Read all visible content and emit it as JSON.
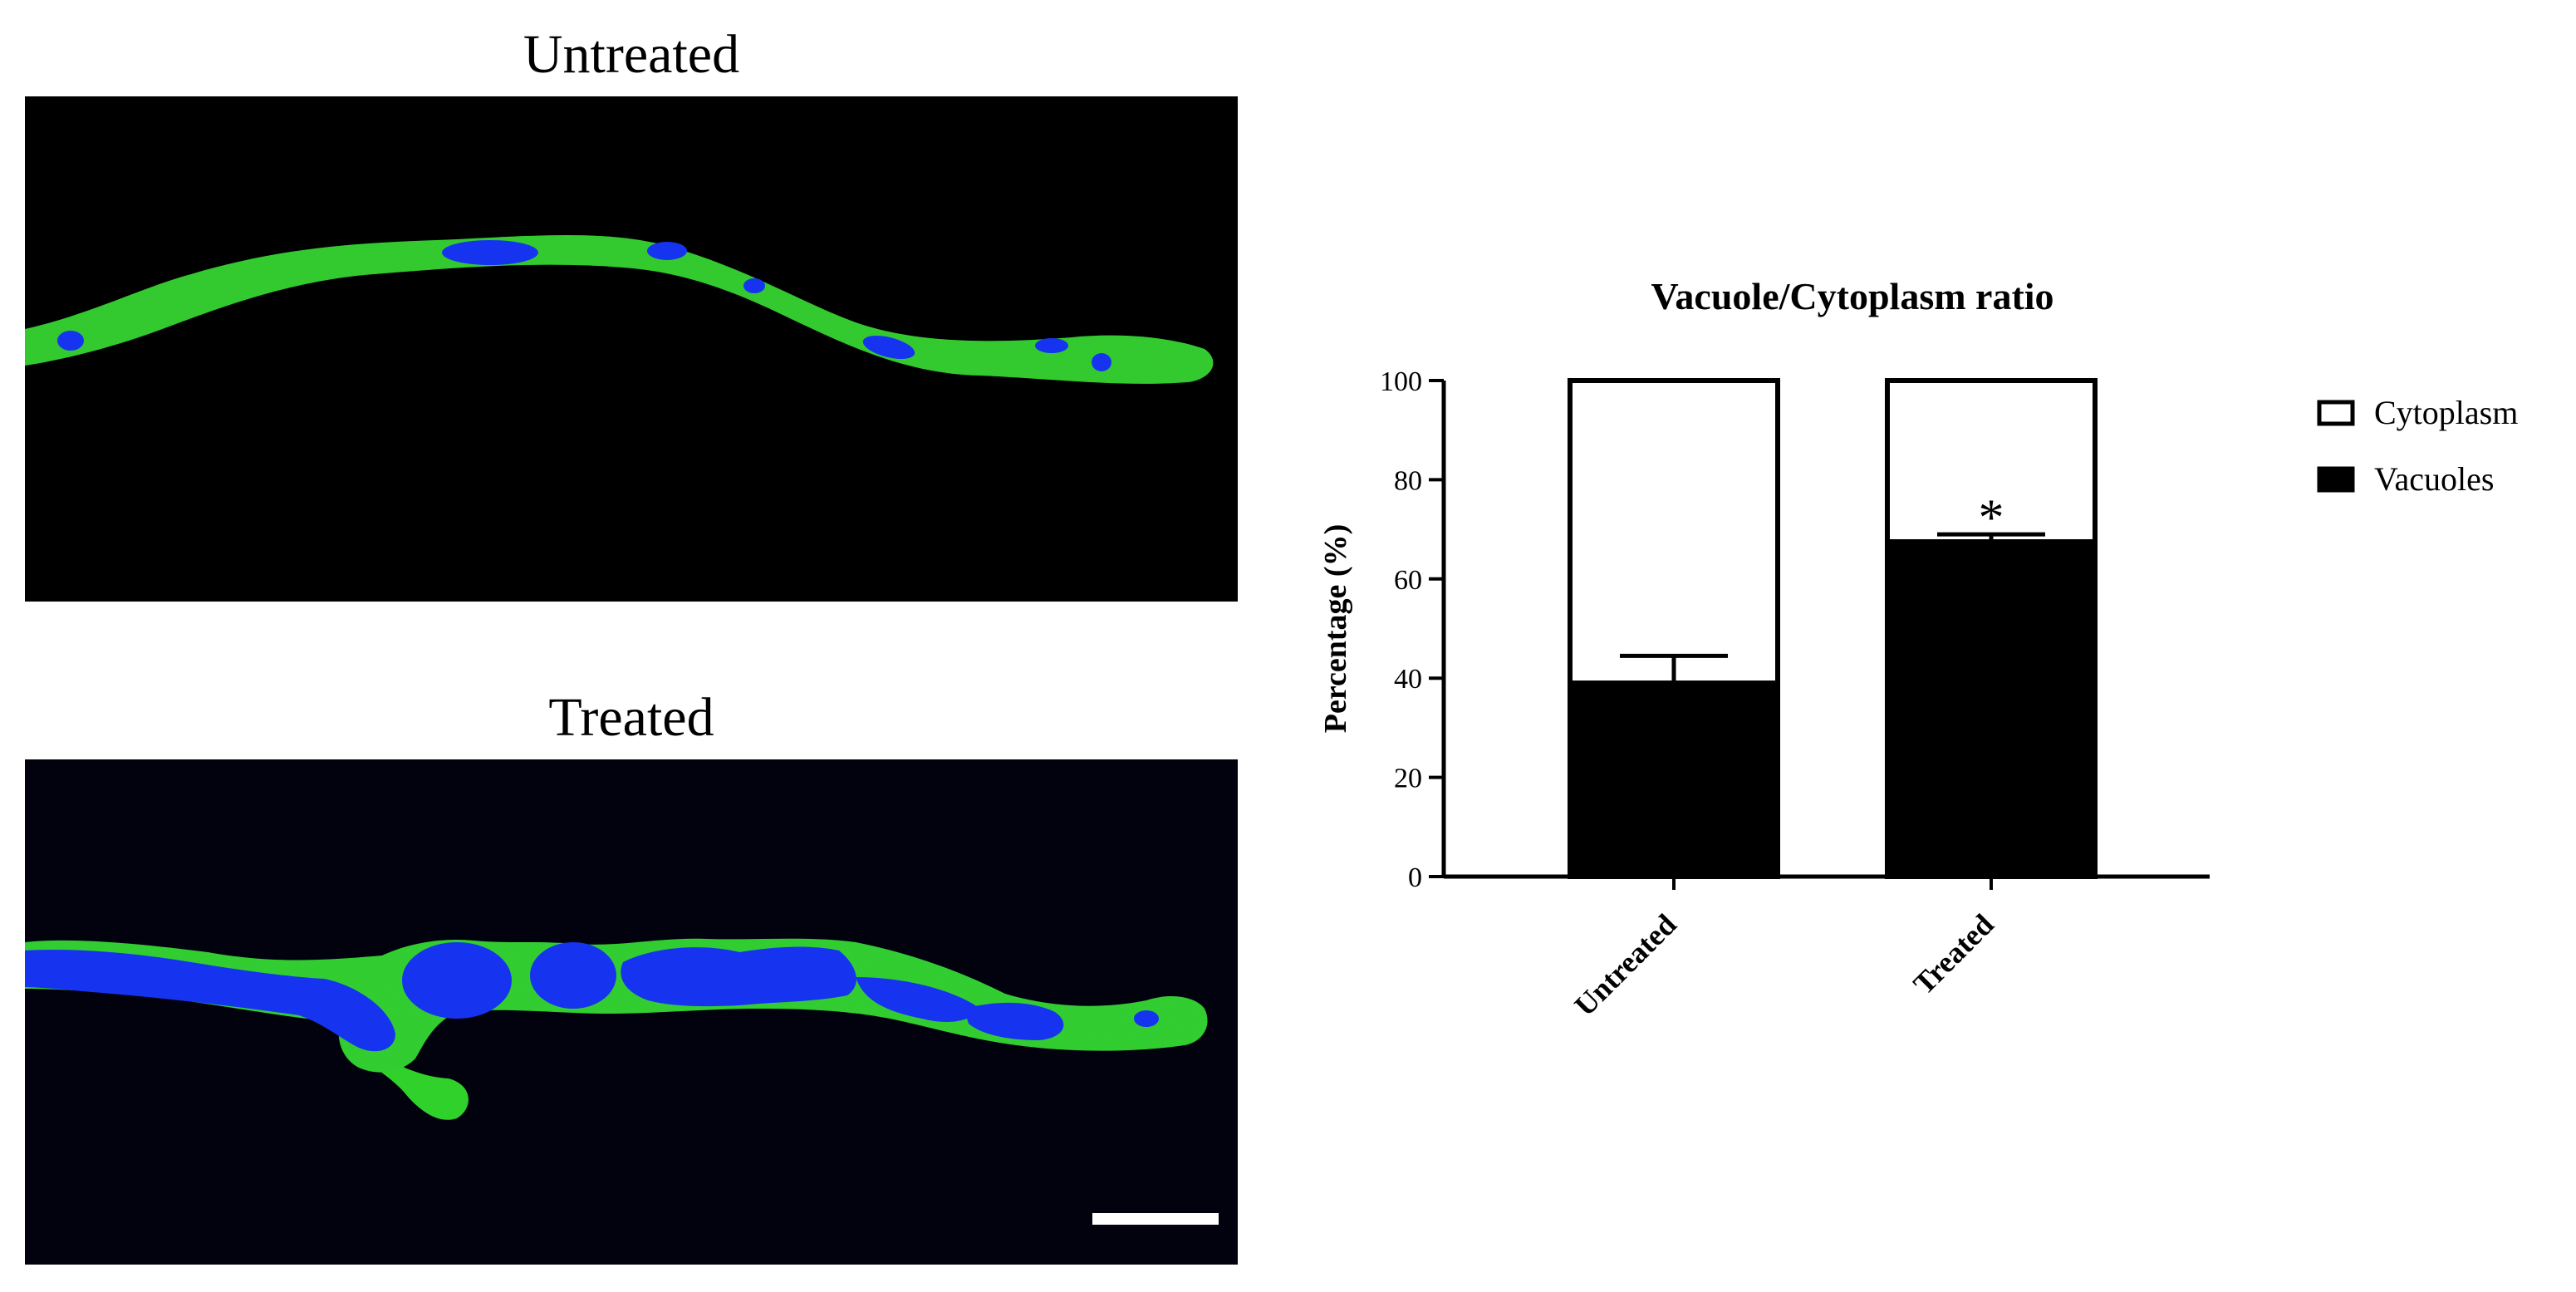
{
  "panels": [
    {
      "title": "Untreated",
      "kind": "micrograph"
    },
    {
      "title": "Treated",
      "kind": "micrograph",
      "scale_bar": true
    }
  ],
  "colors": {
    "cytoplasm_stain": "#2fd12a",
    "vacuole_stain": "#1634f0",
    "background": "#000000"
  },
  "chart_data": {
    "type": "bar",
    "stacked": true,
    "title": "Vacuole/Cytoplasm ratio",
    "xlabel": "",
    "ylabel": "Percentage (%)",
    "ylim": [
      0,
      100
    ],
    "yticks": [
      0,
      20,
      40,
      60,
      80,
      100
    ],
    "categories": [
      "Untreated",
      "Treated"
    ],
    "series": [
      {
        "name": "Vacuoles",
        "values": [
          39,
          67.5
        ],
        "error": [
          5.5,
          1.5
        ],
        "color": "#000000"
      },
      {
        "name": "Cytoplasm",
        "values": [
          61,
          32.5
        ],
        "color": "#ffffff"
      }
    ],
    "annotations": [
      {
        "category": "Treated",
        "text": "*"
      }
    ],
    "legend_order": [
      "Cytoplasm",
      "Vacuoles"
    ],
    "legend_position": "right",
    "grid": false
  }
}
